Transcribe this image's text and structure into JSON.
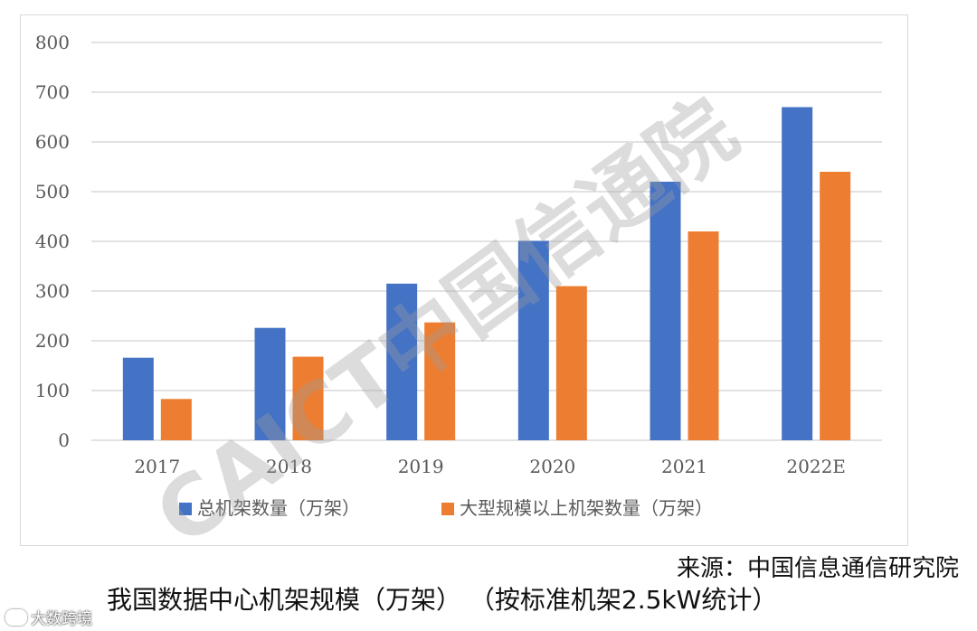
{
  "chart_data": {
    "type": "bar",
    "title": "我国数据中心机架规模（万架）（按标准机架2.5kW统计）",
    "categories": [
      "2017",
      "2018",
      "2019",
      "2020",
      "2021",
      "2022E"
    ],
    "series": [
      {
        "name": "总机架数量（万架）",
        "values": [
          166,
          226,
          315,
          401,
          520,
          670
        ]
      },
      {
        "name": "大型规模以上机架数量（万架）",
        "values": [
          83,
          168,
          237,
          310,
          420,
          540
        ]
      }
    ],
    "y_ticks": [
      "0",
      "100",
      "200",
      "300",
      "400",
      "500",
      "600",
      "700",
      "800"
    ],
    "ylim": [
      0,
      800
    ],
    "xlabel": "",
    "ylabel": "",
    "grid": true,
    "legend_position": "bottom"
  },
  "colors": {
    "series_1": "#4472c4",
    "series_2": "#ed7d31",
    "gridline": "#d9d9d9"
  },
  "watermark": {
    "text": "CAICT中国信通院"
  },
  "source_label": "来源：中国信息通信研究院",
  "caption": "我国数据中心机架规模（万架）   （按标准机架2.5kW统计）",
  "account_mark": "大数跨境",
  "account_logo_icon": "eye-logo-icon"
}
